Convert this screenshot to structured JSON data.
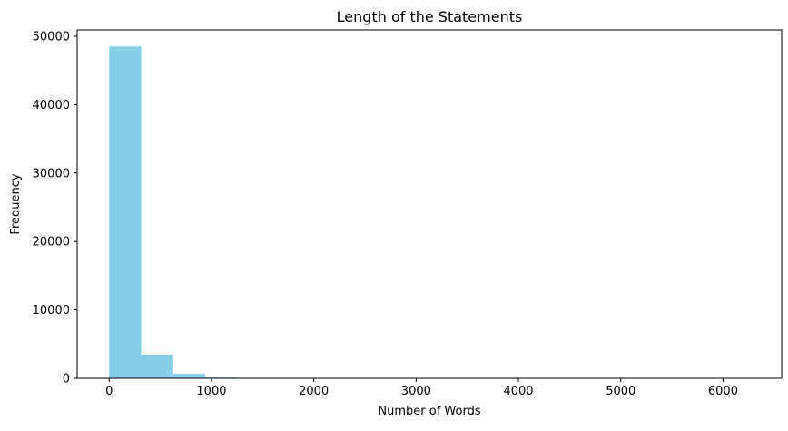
{
  "chart_data": {
    "type": "bar",
    "title": "Length of the Statements",
    "xlabel": "Number of Words",
    "ylabel": "Frequency",
    "bar_color": "#87ceeb",
    "bin_edges": [
      0,
      313,
      626,
      939,
      1252,
      1565,
      1878,
      2191,
      2504,
      2817,
      3130,
      3443,
      3756,
      4069,
      4382,
      4695,
      5008,
      5321,
      5634,
      5947,
      6260
    ],
    "values": [
      48500,
      3450,
      650,
      120,
      40,
      15,
      8,
      5,
      3,
      2,
      2,
      1,
      1,
      1,
      0,
      0,
      1,
      0,
      0,
      1
    ],
    "xlim": [
      -313,
      6573
    ],
    "ylim": [
      0,
      50925
    ],
    "xticks": [
      0,
      1000,
      2000,
      3000,
      4000,
      5000,
      6000
    ],
    "xtick_labels": [
      "0",
      "1000",
      "2000",
      "3000",
      "4000",
      "5000",
      "6000"
    ],
    "yticks": [
      0,
      10000,
      20000,
      30000,
      40000,
      50000
    ],
    "ytick_labels": [
      "0",
      "10000",
      "20000",
      "30000",
      "40000",
      "50000"
    ],
    "grid": false,
    "legend": "none"
  }
}
